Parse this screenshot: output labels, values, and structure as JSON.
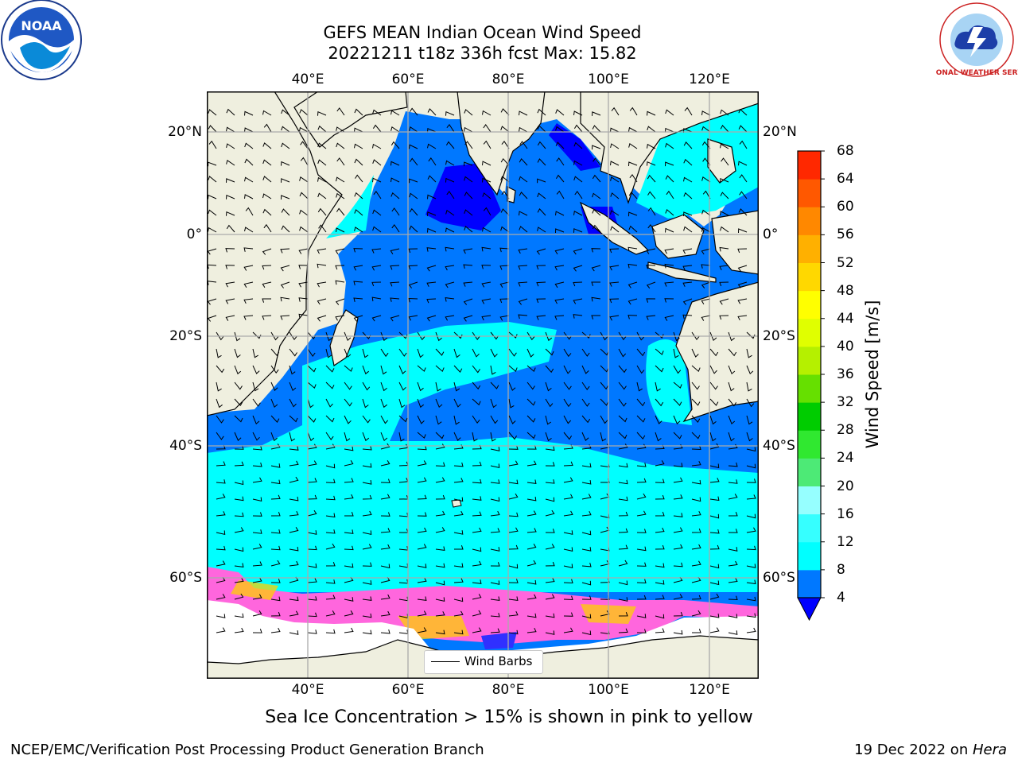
{
  "header": {
    "title_line1": "GEFS MEAN Indian Ocean Wind Speed",
    "title_line2": "20221211 t18z 336h fcst   Max: 15.82"
  },
  "logos": {
    "left": {
      "text": "NOAA"
    },
    "right": {
      "text": "NATIONAL WEATHER SERVICE"
    }
  },
  "map": {
    "top_lon_labels": [
      "40°E",
      "60°E",
      "80°E",
      "100°E",
      "120°E"
    ],
    "bottom_lon_labels": [
      "40°E",
      "60°E",
      "80°E",
      "100°E",
      "120°E"
    ],
    "left_lat_labels": [
      "20°N",
      "0°",
      "20°S",
      "40°S",
      "60°S"
    ],
    "right_lat_labels": [
      "20°N",
      "0°",
      "20°S",
      "40°S",
      "60°S"
    ],
    "lon_range": [
      20,
      130
    ],
    "lat_range": [
      -70,
      27
    ],
    "legend_label": "Wind Barbs"
  },
  "colorbar": {
    "label": "Wind Speed [m/s]",
    "ticks": [
      "4",
      "8",
      "12",
      "16",
      "20",
      "24",
      "28",
      "32",
      "36",
      "40",
      "44",
      "48",
      "52",
      "56",
      "60",
      "64",
      "68"
    ],
    "colors": [
      "#0078ff",
      "#00ffff",
      "#36ffff",
      "#96ffff",
      "#4dea76",
      "#30e830",
      "#00cc00",
      "#66e000",
      "#b5f000",
      "#e0ff00",
      "#ffff00",
      "#ffd800",
      "#ffb000",
      "#ff8800",
      "#ff5800",
      "#ff2800"
    ],
    "under_color": "#0000ff"
  },
  "colors": {
    "land": "#efefdf",
    "ice_white": "#ffffff",
    "ocean_light": "#00ffff",
    "ocean_mid": "#0078ff",
    "ocean_calm": "#0000ff"
  },
  "footer": {
    "caption": "Sea Ice Concentration > 15% is shown in pink to yellow",
    "credit_left": "NCEP/EMC/Verification Post Processing Product Generation Branch",
    "credit_right_prefix": "19 Dec 2022 on ",
    "credit_right_host": "Hera"
  }
}
